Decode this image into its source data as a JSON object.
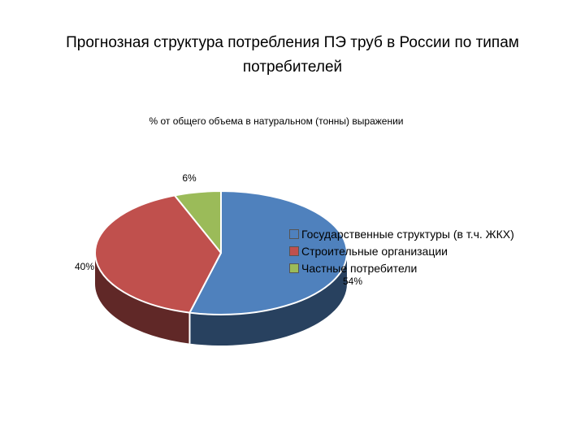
{
  "chart_data": {
    "type": "pie",
    "title": "Прогнозная структура потребления ПЭ труб в России по типам потребителей",
    "subtitle": "% от общего объема в натуральном (тонны) выражении",
    "categories": [
      "Государственные структуры (в т.ч. ЖКХ)",
      "Строительные организации",
      "Частные потребители"
    ],
    "values": [
      54,
      40,
      6
    ],
    "data_labels": [
      "54%",
      "40%",
      "6%"
    ],
    "colors": [
      "#4F81BD",
      "#C0504D",
      "#9BBB59"
    ],
    "legend_position": "right",
    "style": "3d"
  }
}
